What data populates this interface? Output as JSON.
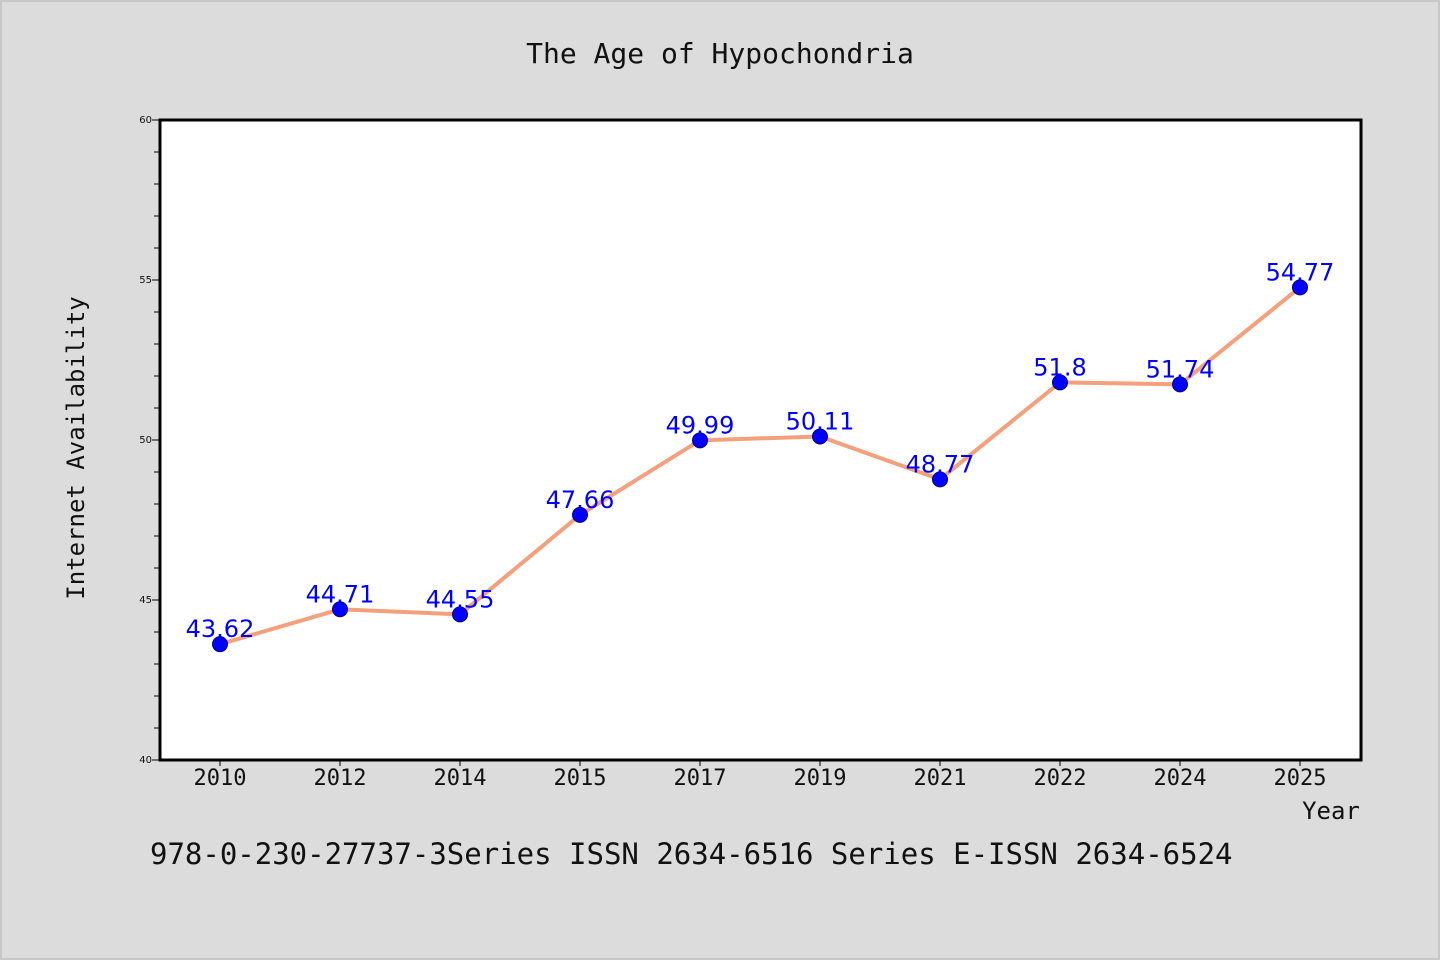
{
  "chart_data": {
    "type": "line",
    "title": "The Age of Hypochondria",
    "xlabel": "Year",
    "ylabel": "Internet Availability",
    "categories": [
      "2010",
      "2012",
      "2014",
      "2015",
      "2017",
      "2019",
      "2021",
      "2022",
      "2024",
      "2025"
    ],
    "series": [
      {
        "values": [
          43.62,
          44.71,
          44.55,
          47.66,
          49.99,
          50.11,
          48.77,
          51.8,
          51.74,
          54.77
        ],
        "data_labels": [
          "43.62",
          "44.71",
          "44.55",
          "47.66",
          "49.99",
          "50.11",
          "48.77",
          "51.8",
          "51.74",
          "54.77"
        ],
        "line_color": "#f4a07c",
        "marker_color": "#0000ff"
      }
    ],
    "ylim": [
      40,
      60
    ],
    "yticks": [
      "40",
      "45",
      "50",
      "55",
      "60"
    ],
    "grid": false,
    "legend": false
  },
  "footer_text": "978-0-230-27737-3Series ISSN 2634-6516 Series E-ISSN 2634-6524",
  "colors": {
    "background": "#dcdcdc",
    "plot_area": "#ffffff",
    "line": "#f4a07c",
    "marker": "#0000ff",
    "data_label": "#0000ff"
  }
}
